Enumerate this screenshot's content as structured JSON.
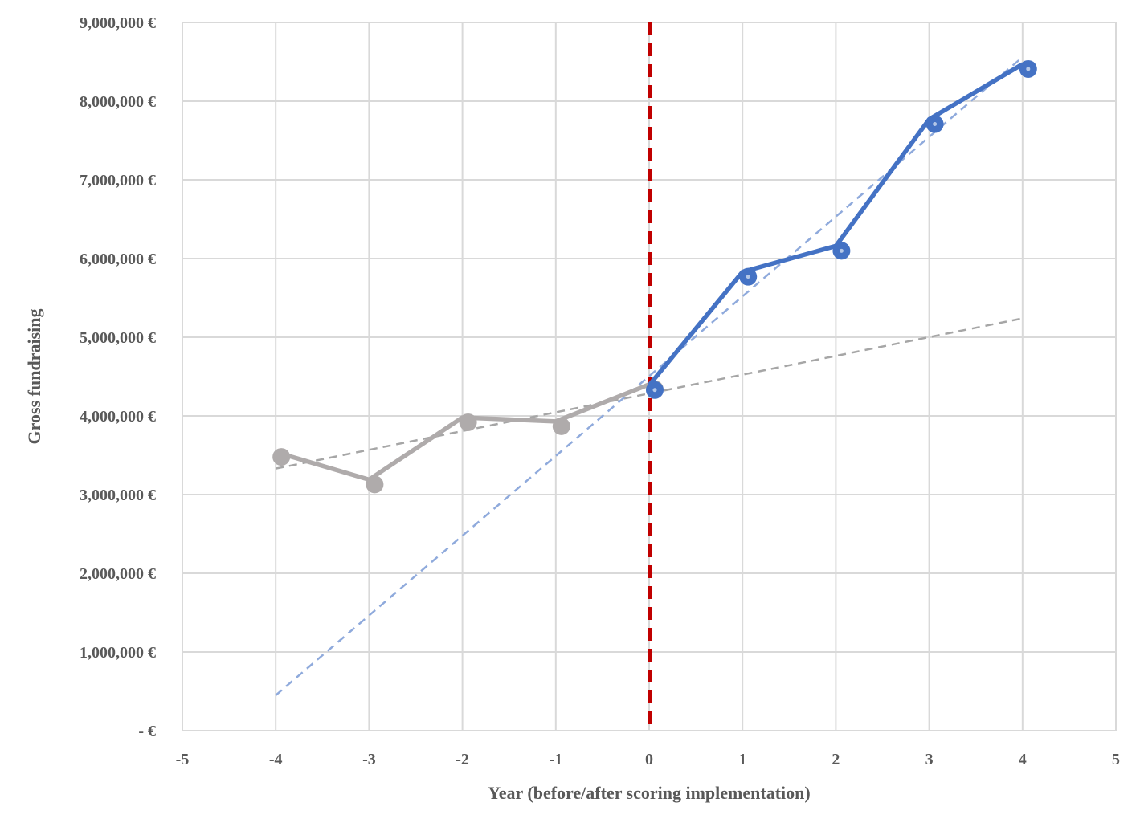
{
  "chart_data": {
    "type": "line",
    "title": "",
    "xlabel": "Year (before/after scoring implementation)",
    "ylabel": "Gross fundraising",
    "xlim": [
      -5,
      5
    ],
    "ylim": [
      0,
      9000000
    ],
    "x_ticks": [
      "-5",
      "-4",
      "-3",
      "-2",
      "-1",
      "0",
      "1",
      "2",
      "3",
      "4",
      "5"
    ],
    "y_ticks": [
      "-  €",
      "1,000,000 €",
      "2,000,000 €",
      "3,000,000 €",
      "4,000,000 €",
      "5,000,000 €",
      "6,000,000 €",
      "7,000,000 €",
      "8,000,000 €",
      "9,000,000 €"
    ],
    "grid": true,
    "legend": "none",
    "series": [
      {
        "color": "#AFABAB",
        "x": [
          -4,
          -3,
          -2,
          -1,
          0
        ],
        "values": [
          3540000,
          3190000,
          3980000,
          3930000,
          4400000
        ]
      },
      {
        "color": "#4472C4",
        "x": [
          0,
          1,
          2,
          3,
          4
        ],
        "values": [
          4390000,
          5830000,
          6160000,
          7770000,
          8470000
        ]
      }
    ],
    "trendlines": [
      {
        "color": "#A6A6A6",
        "style": "dashed",
        "x": [
          -4,
          4
        ],
        "values": [
          3330000,
          5240000
        ]
      },
      {
        "color": "#8FAADC",
        "style": "dashed",
        "x": [
          -4,
          4
        ],
        "values": [
          450000,
          8560000
        ]
      }
    ],
    "reference_line": {
      "x": 0,
      "color": "#C00000",
      "style": "dashed"
    }
  }
}
